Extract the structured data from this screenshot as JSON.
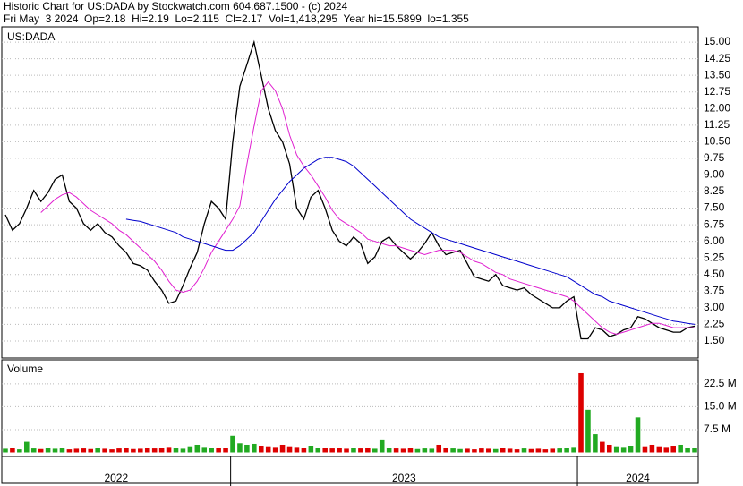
{
  "header": {
    "line1": "Historic Chart for US:DADA by Stockwatch.com 604.687.1500 - (c) 2024",
    "line2": "Fri May  3 2024  Op=2.18  Hi=2.19  Lo=2.115  Cl=2.17  Vol=1,418,295  Year hi=15.5899  lo=1.355"
  },
  "chart_data": {
    "type": "line",
    "symbol_label": "US:DADA",
    "series": [
      {
        "color": "#000000",
        "values": [
          7.2,
          6.5,
          6.8,
          7.5,
          8.3,
          7.8,
          8.2,
          8.8,
          9.0,
          7.8,
          7.5,
          6.8,
          6.5,
          6.8,
          6.4,
          6.2,
          5.8,
          5.5,
          5.0,
          4.9,
          4.7,
          4.2,
          3.8,
          3.2,
          3.3,
          4.0,
          4.8,
          5.5,
          6.8,
          7.8,
          7.5,
          7.0,
          10.5,
          13.0,
          14.0,
          15.0,
          13.5,
          12.0,
          11.0,
          10.5,
          9.5,
          7.5,
          7.0,
          8.0,
          8.3,
          7.5,
          6.5,
          6.0,
          5.8,
          6.2,
          5.9,
          5.0,
          5.3,
          6.0,
          6.2,
          5.8,
          5.5,
          5.2,
          5.5,
          5.9,
          6.4,
          5.8,
          5.4,
          5.5,
          5.6,
          5.0,
          4.4,
          4.3,
          4.2,
          4.5,
          4.0,
          3.9,
          3.8,
          3.9,
          3.6,
          3.4,
          3.2,
          3.0,
          3.0,
          3.3,
          3.5,
          1.6,
          1.6,
          2.1,
          2.0,
          1.7,
          1.8,
          2.0,
          2.1,
          2.6,
          2.5,
          2.3,
          2.1,
          2.0,
          1.9,
          1.9,
          2.1,
          2.17
        ]
      },
      {
        "color": "#e020d0",
        "values": [
          null,
          null,
          null,
          null,
          null,
          7.3,
          7.6,
          7.9,
          8.1,
          8.2,
          8.0,
          7.7,
          7.4,
          7.2,
          7.0,
          6.8,
          6.5,
          6.3,
          6.0,
          5.7,
          5.4,
          5.1,
          4.7,
          4.2,
          3.8,
          3.7,
          3.8,
          4.2,
          4.8,
          5.5,
          6.0,
          6.5,
          7.0,
          7.6,
          9.5,
          11.2,
          12.8,
          13.2,
          12.8,
          12.0,
          10.8,
          9.9,
          9.4,
          9.0,
          8.5,
          8.0,
          7.4,
          7.0,
          6.8,
          6.6,
          6.4,
          6.1,
          6.0,
          5.9,
          5.8,
          5.8,
          5.7,
          5.6,
          5.5,
          5.4,
          5.5,
          5.6,
          5.6,
          5.6,
          5.5,
          5.3,
          5.1,
          5.0,
          4.8,
          4.6,
          4.5,
          4.3,
          4.2,
          4.1,
          4.0,
          3.9,
          3.8,
          3.7,
          3.6,
          3.5,
          3.3,
          3.0,
          2.7,
          2.4,
          2.1,
          1.9,
          1.8,
          1.9,
          2.0,
          2.1,
          2.2,
          2.3,
          2.3,
          2.2,
          2.1,
          2.1,
          2.1,
          2.1
        ]
      },
      {
        "color": "#0000cc",
        "values": [
          null,
          null,
          null,
          null,
          null,
          null,
          null,
          null,
          null,
          null,
          null,
          null,
          null,
          null,
          null,
          null,
          null,
          7.0,
          6.95,
          6.9,
          6.8,
          6.7,
          6.6,
          6.5,
          6.4,
          6.2,
          6.1,
          6.0,
          5.9,
          5.8,
          5.7,
          5.6,
          5.6,
          5.8,
          6.1,
          6.4,
          6.9,
          7.4,
          7.9,
          8.3,
          8.7,
          9.0,
          9.3,
          9.5,
          9.7,
          9.8,
          9.8,
          9.7,
          9.6,
          9.4,
          9.1,
          8.8,
          8.5,
          8.2,
          7.9,
          7.6,
          7.3,
          7.0,
          6.8,
          6.6,
          6.4,
          6.2,
          6.1,
          6.0,
          5.9,
          5.8,
          5.7,
          5.6,
          5.5,
          5.4,
          5.3,
          5.2,
          5.1,
          5.0,
          4.9,
          4.8,
          4.7,
          4.6,
          4.5,
          4.4,
          4.2,
          4.0,
          3.8,
          3.6,
          3.5,
          3.3,
          3.2,
          3.1,
          3.0,
          2.9,
          2.8,
          2.7,
          2.6,
          2.5,
          2.4,
          2.35,
          2.3,
          2.25
        ]
      }
    ],
    "ylim": [
      0.73,
      15.69
    ],
    "yticks": [
      {
        "value": 1.5,
        "label": "1.50"
      },
      {
        "value": 2.25,
        "label": "2.25"
      },
      {
        "value": 3,
        "label": "3.00"
      },
      {
        "value": 3.75,
        "label": "3.75"
      },
      {
        "value": 4.5,
        "label": "4.50"
      },
      {
        "value": 5.25,
        "label": "5.25"
      },
      {
        "value": 6,
        "label": "6.00"
      },
      {
        "value": 6.75,
        "label": "6.75"
      },
      {
        "value": 7.5,
        "label": "7.50"
      },
      {
        "value": 8.25,
        "label": "8.25"
      },
      {
        "value": 9,
        "label": "9.00"
      },
      {
        "value": 9.75,
        "label": "9.75"
      },
      {
        "value": 10.5,
        "label": "10.50"
      },
      {
        "value": 11.25,
        "label": "11.25"
      },
      {
        "value": 12,
        "label": "12.00"
      },
      {
        "value": 12.75,
        "label": "12.75"
      },
      {
        "value": 13.5,
        "label": "13.50"
      },
      {
        "value": 14.25,
        "label": "14.25"
      },
      {
        "value": 15,
        "label": "15.00"
      }
    ],
    "grid": true,
    "volume": {
      "title": "Volume",
      "up_color": "#22aa22",
      "down_color": "#dd0000",
      "values": [
        1.2,
        1.5,
        1.0,
        3.5,
        1.3,
        1.1,
        1.4,
        1.2,
        1.6,
        1.0,
        1.2,
        1.3,
        1.1,
        1.5,
        1.2,
        1.0,
        1.3,
        1.4,
        1.1,
        1.2,
        1.5,
        1.3,
        1.6,
        1.8,
        1.4,
        1.2,
        2.0,
        2.5,
        1.8,
        1.6,
        1.5,
        1.4,
        5.5,
        3.0,
        2.5,
        2.8,
        2.2,
        2.0,
        1.8,
        2.5,
        2.0,
        1.8,
        1.6,
        2.2,
        1.5,
        1.4,
        1.3,
        1.6,
        1.2,
        1.5,
        1.3,
        1.4,
        1.2,
        4.0,
        1.5,
        1.3,
        1.2,
        1.4,
        1.1,
        1.3,
        1.2,
        2.5,
        1.4,
        1.3,
        1.1,
        1.2,
        1.0,
        1.3,
        1.2,
        1.1,
        1.4,
        1.2,
        1.0,
        1.3,
        1.1,
        1.2,
        1.0,
        1.2,
        1.3,
        1.5,
        1.8,
        26.0,
        14.0,
        6.0,
        3.5,
        2.5,
        2.0,
        1.8,
        2.2,
        11.5,
        2.0,
        2.5,
        2.0,
        1.8,
        2.2,
        2.5,
        1.6,
        1.4
      ],
      "ylim": [
        0,
        30.4
      ],
      "yticks": [
        {
          "value": 7.5,
          "label": "7.5 M"
        },
        {
          "value": 15,
          "label": "15.0 M"
        },
        {
          "value": 22.5,
          "label": "22.5 M"
        }
      ]
    },
    "years": [
      "2022",
      "2023",
      "2024"
    ]
  }
}
